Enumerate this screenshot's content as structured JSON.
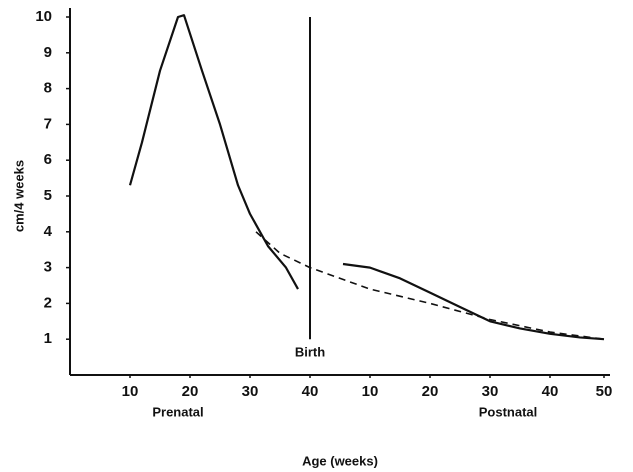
{
  "chart_data": {
    "type": "line",
    "x_label": "Age (weeks)",
    "y_label": "cm/4 weeks",
    "xlim": [
      0,
      90
    ],
    "ylim": [
      0,
      10
    ],
    "xticks": [
      10,
      20,
      30,
      40,
      {
        "value": 50,
        "label": "10"
      },
      {
        "value": 60,
        "label": "20"
      },
      {
        "value": 70,
        "label": "30"
      },
      {
        "value": 80,
        "label": "40"
      },
      {
        "value": 89,
        "label": "50"
      }
    ],
    "yticks": [
      1,
      2,
      3,
      4,
      5,
      6,
      7,
      8,
      9,
      10
    ],
    "series": [
      {
        "color": "#111111",
        "dashed": false,
        "x": [
          10,
          12,
          15,
          18,
          19,
          22,
          25,
          28,
          30,
          33,
          36,
          38
        ],
        "values": [
          5.3,
          6.5,
          8.5,
          10,
          10.05,
          8.5,
          7,
          5.3,
          4.5,
          3.6,
          3,
          2.4
        ]
      },
      {
        "color": "#111111",
        "dashed": false,
        "x": [
          45.5,
          50,
          55,
          60,
          65,
          70,
          75,
          80,
          85,
          89
        ],
        "values": [
          3.1,
          3,
          2.7,
          2.3,
          1.9,
          1.5,
          1.3,
          1.15,
          1.05,
          1
        ]
      },
      {
        "color": "#111111",
        "dashed": true,
        "x": [
          31,
          35,
          40,
          50,
          60,
          70,
          80,
          89
        ],
        "values": [
          4,
          3.4,
          3,
          2.4,
          2,
          1.55,
          1.2,
          1
        ]
      }
    ],
    "annotations": [
      {
        "text": "Birth",
        "x": 40
      }
    ],
    "group_labels": [
      {
        "text": "Prenatal",
        "x": 18
      },
      {
        "text": "Postnatal",
        "x": 73
      }
    ]
  }
}
